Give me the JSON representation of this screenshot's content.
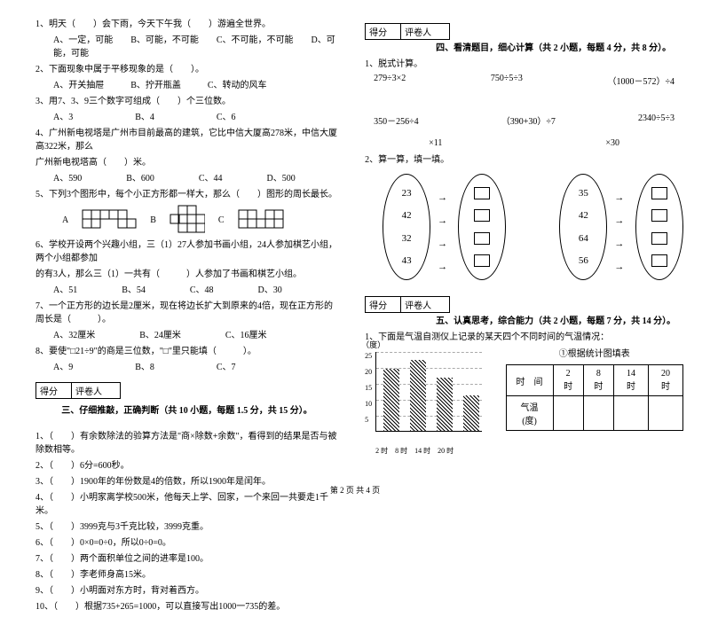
{
  "left": {
    "q1": "1、明天（　　）会下雨，今天下午我（　　）游遍全世界。",
    "q1opts": "A、一定，可能　　B、可能，不可能　　C、不可能，不可能　　D、可能，可能",
    "q2": "2、下面现象中属于平移现象的是（　　）。",
    "q2opts": "A、开关抽屉　　　B、拧开瓶盖　　　C、转动的风车",
    "q3": "3、用7、3、9三个数字可组成（　　）个三位数。",
    "q3opts": "A、3　　　　　　　B、4　　　　　　　C、6",
    "q4a": "4、广州新电视塔是广州市目前最高的建筑，它比中信大厦高278米，中信大厦高322米，那么",
    "q4b": "广州新电视塔高（　　）米。",
    "q4opts": "A、590　　　　　B、600　　　　　C、44　　　　　D、500",
    "q5": "5、下列3个图形中，每个小正方形都一样大，那么（　　）图形的周长最长。",
    "q6a": "6、学校开设两个兴趣小组，三（1）27人参加书画小组，24人参加棋艺小组，两个小组都参加",
    "q6b": "的有3人，那么三（1）一共有（　　　）人参加了书画和棋艺小组。",
    "q6opts": "A、51　　　　　B、54　　　　　C、48　　　　　D、30",
    "q7": "7、一个正方形的边长是2厘米，现在将边长扩大到原来的4倍，现在正方形的周长是（　　　）。",
    "q7opts": "A、32厘米　　　　　B、24厘米　　　　　C、16厘米",
    "q8": "8、要使\"□21÷9\"的商是三位数，\"□\"里只能填（　　　）。",
    "q8opts": "A、9　　　　　　　B、8　　　　　　　C、7",
    "score": {
      "c1": "得分",
      "c2": "评卷人"
    },
    "sectionTitle": "三、仔细推敲，正确判断（共 10 小题，每题 1.5 分，共 15 分）。",
    "j1": "1、（　　）有余数除法的验算方法是\"商×除数+余数\"，看得到的结果是否与被除数相等。",
    "j2": "2、（　　）6分=600秒。",
    "j3": "3、（　　）1900年的年份数是4的倍数，所以1900年是闰年。",
    "j4": "4、（　　）小明家离学校500米，他每天上学、回家，一个来回一共要走1千米。",
    "j5": "5、（　　）3999克与3千克比较，3999克重。",
    "j6": "6、（　　）0×0=0÷0，所以0÷0=0。",
    "j7": "7、（　　）两个面积单位之间的进率是100。",
    "j8": "8、（　　）李老师身高15米。",
    "j9": "9、（　　）小明面对东方时，背对着西方。",
    "j10": "10、（　　）根据735+265=1000，可以直接写出1000一735的差。"
  },
  "right": {
    "score": {
      "c1": "得分",
      "c2": "评卷人"
    },
    "sectionTitle4": "四、看清题目，细心计算（共 2 小题，每题 4 分，共 8 分）。",
    "calc1Label": "1、脱式计算。",
    "c11": "279÷3×2",
    "c12": "750÷5÷3",
    "c13": "（1000－572）÷4",
    "c21": "350－256÷4",
    "c22": "（390+30）÷7",
    "c23": "2340÷5÷3",
    "calc2Label": "2、算一算，填一填。",
    "oval1": {
      "mult": "×11",
      "nums": [
        "23",
        "42",
        "32",
        "43"
      ]
    },
    "oval2": {
      "mult": "×30",
      "nums": [
        "35",
        "42",
        "64",
        "56"
      ]
    },
    "score2": {
      "c1": "得分",
      "c2": "评卷人"
    },
    "sectionTitle5": "五、认真思考，综合能力（共 2 小题，每题 7 分，共 14 分）。",
    "q1": "1、下面是气温自测仪上记录的某天四个不同时间的气温情况：",
    "chart": {
      "yUnit": "（度）",
      "yTicks": [
        "25",
        "20",
        "15",
        "10",
        "5"
      ],
      "bars": [
        70,
        80,
        60,
        40
      ],
      "xLabels": [
        "2 时",
        "8 时",
        "14 时",
        "20 时"
      ]
    },
    "tableTitle": "①根据统计图填表",
    "table": {
      "h1": "时　间",
      "t1": "2 时",
      "t2": "8 时",
      "t3": "14 时",
      "t4": "20 时",
      "h2": "气温(度)"
    }
  },
  "footer": "第 2 页 共 4 页"
}
